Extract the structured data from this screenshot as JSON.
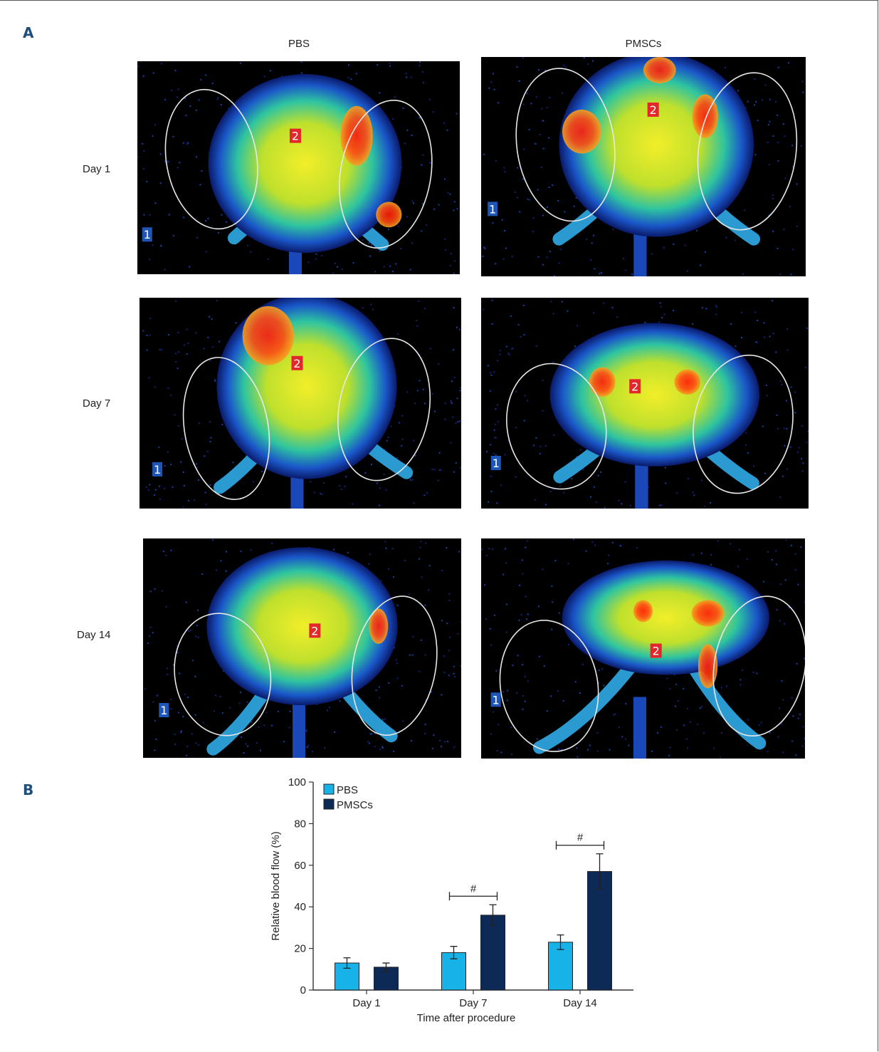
{
  "panels": {
    "a_label": "A",
    "b_label": "B"
  },
  "columns": [
    {
      "label": "PBS"
    },
    {
      "label": "PMSCs"
    }
  ],
  "rows": [
    {
      "label": "Day 1"
    },
    {
      "label": "Day 7"
    },
    {
      "label": "Day 14"
    }
  ],
  "roi_labels": {
    "reference": "1",
    "target": "2"
  },
  "colors": {
    "pbs": "#16b2e8",
    "pmscs": "#0c2a55",
    "axis": "#333333"
  },
  "chart_data": {
    "type": "bar",
    "categories": [
      "Day 1",
      "Day 7",
      "Day 14"
    ],
    "series": [
      {
        "name": "PBS",
        "values": [
          13,
          18,
          23
        ],
        "errors": [
          2.5,
          3,
          3.5
        ],
        "color": "#16b2e8"
      },
      {
        "name": "PMSCs",
        "values": [
          11,
          36,
          57
        ],
        "errors": [
          2,
          5,
          8.5
        ],
        "color": "#0c2a55"
      }
    ],
    "xlabel": "Time after procedure",
    "ylabel": "Relative blood flow (%)",
    "ylim": [
      0,
      100
    ],
    "yticks": [
      0,
      20,
      40,
      60,
      80,
      100
    ],
    "legend_position": "top-left",
    "grid": false,
    "significance": [
      {
        "category": "Day 7",
        "symbol": "#"
      },
      {
        "category": "Day 14",
        "symbol": "#"
      }
    ]
  }
}
